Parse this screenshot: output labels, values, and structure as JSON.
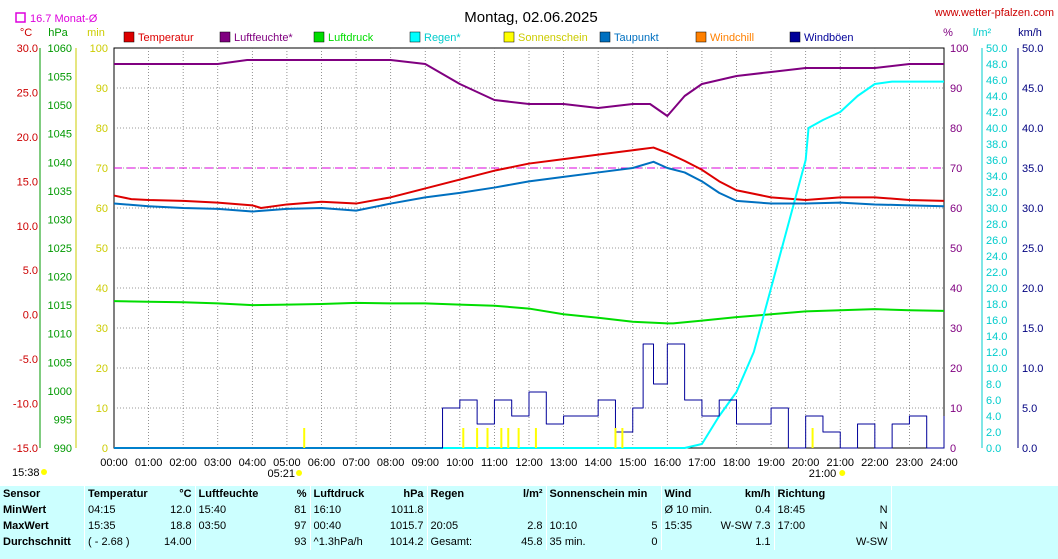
{
  "chart_data": {
    "type": "line",
    "title": "Montag, 02.06.2025",
    "source": "www.wetter-pfalzen.com",
    "monthly_avg_label": "16.7 Monat-Ø",
    "x_ticks": [
      "00:00",
      "01:00",
      "02:00",
      "03:00",
      "04:00",
      "05:00",
      "06:00",
      "07:00",
      "08:00",
      "09:00",
      "10:00",
      "11:00",
      "12:00",
      "13:00",
      "14:00",
      "15:00",
      "16:00",
      "17:00",
      "18:00",
      "19:00",
      "20:00",
      "21:00",
      "22:00",
      "23:00",
      "24:00"
    ],
    "axes": {
      "temp": {
        "unit": "°C",
        "ticks": [
          "30.0",
          "25.0",
          "20.0",
          "15.0",
          "10.0",
          "5.0",
          "0.0",
          "-5.0",
          "-10.0",
          "-15.0"
        ],
        "ylim": [
          -15,
          30
        ],
        "color": "#cc0000"
      },
      "pressure": {
        "unit": "hPa",
        "ticks": [
          "1060",
          "1055",
          "1050",
          "1045",
          "1040",
          "1035",
          "1030",
          "1025",
          "1020",
          "1015",
          "1010",
          "1005",
          "1000",
          "995",
          "990"
        ],
        "ylim": [
          990,
          1060
        ],
        "color": "#009900"
      },
      "sun_min": {
        "unit": "min",
        "ticks": [
          "100",
          "90",
          "80",
          "70",
          "60",
          "50",
          "40",
          "30",
          "20",
          "10",
          "0"
        ],
        "ylim": [
          0,
          100
        ],
        "color": "#cccc00"
      },
      "humidity": {
        "unit": "%",
        "ticks": [
          "100",
          "90",
          "80",
          "70",
          "60",
          "50",
          "40",
          "30",
          "20",
          "10",
          "0"
        ],
        "ylim": [
          0,
          100
        ],
        "color": "#800080"
      },
      "rain": {
        "unit": "l/m²",
        "ticks": [
          "50.0",
          "48.0",
          "46.0",
          "44.0",
          "42.0",
          "40.0",
          "38.0",
          "36.0",
          "34.0",
          "32.0",
          "30.0",
          "28.0",
          "26.0",
          "24.0",
          "22.0",
          "20.0",
          "18.0",
          "16.0",
          "14.0",
          "12.0",
          "10.0",
          "8.0",
          "6.0",
          "4.0",
          "2.0",
          "0.0"
        ],
        "ylim": [
          0,
          50
        ],
        "color": "#00cccc"
      },
      "wind": {
        "unit": "km/h",
        "ticks": [
          "50.0",
          "45.0",
          "40.0",
          "35.0",
          "30.0",
          "25.0",
          "20.0",
          "15.0",
          "10.0",
          "5.0",
          "0.0"
        ],
        "ylim": [
          0,
          50
        ],
        "color": "#000080"
      }
    },
    "legend": [
      {
        "name": "Temperatur",
        "color": "#dd0000"
      },
      {
        "name": "Luftfeuchte*",
        "color": "#800080"
      },
      {
        "name": "Luftdruck",
        "color": "#00dd00"
      },
      {
        "name": "Regen*",
        "color": "#00ffff"
      },
      {
        "name": "Sonnenschein",
        "color": "#ffff00"
      },
      {
        "name": "Taupunkt",
        "color": "#0070c0"
      },
      {
        "name": "Windchill",
        "color": "#ff8000"
      },
      {
        "name": "Windböen",
        "color": "#000099"
      }
    ],
    "reference_line": {
      "axis": "humidity",
      "value": 70,
      "color": "#dd00dd"
    },
    "series": [
      {
        "name": "Temperatur",
        "axis": "temp",
        "color": "#dd0000",
        "x": [
          0,
          0.5,
          1,
          2,
          3,
          4,
          4.25,
          5,
          6,
          7,
          8,
          9,
          10,
          11,
          12,
          13,
          14,
          15,
          15.6,
          16,
          16.5,
          17,
          17.5,
          18,
          19,
          20,
          21,
          22,
          23,
          24
        ],
        "y": [
          13.4,
          13.0,
          12.9,
          12.8,
          12.6,
          12.3,
          12.0,
          12.4,
          12.7,
          12.5,
          13.2,
          14.2,
          15.2,
          16.2,
          17.0,
          17.5,
          18.0,
          18.5,
          18.8,
          18.2,
          17.3,
          16.3,
          15.0,
          14.0,
          13.2,
          12.9,
          13.2,
          13.2,
          12.9,
          12.8
        ]
      },
      {
        "name": "Luftfeuchte*",
        "axis": "humidity",
        "color": "#800080",
        "x": [
          0,
          1,
          2,
          3,
          3.85,
          4,
          5,
          6,
          7,
          8,
          9,
          10,
          11,
          12,
          13,
          14,
          15,
          15.5,
          16,
          16.5,
          17,
          18,
          19,
          20,
          21,
          22,
          23,
          24
        ],
        "y": [
          96,
          96,
          96,
          96,
          97,
          97,
          97,
          97,
          97,
          97,
          96,
          91,
          87,
          86,
          86,
          85,
          86,
          86,
          83,
          88,
          91,
          93,
          94,
          95,
          95,
          95,
          96,
          96
        ]
      },
      {
        "name": "Luftdruck",
        "axis": "pressure",
        "color": "#00dd00",
        "x": [
          0,
          1,
          2,
          3,
          4,
          5,
          6,
          7,
          8,
          9,
          10,
          11,
          12,
          13,
          14,
          15,
          16,
          16.17,
          17,
          18,
          19,
          20,
          21,
          22,
          23,
          24
        ],
        "y": [
          1015.7,
          1015.6,
          1015.5,
          1015.3,
          1015.0,
          1015.1,
          1015.2,
          1015.4,
          1015.3,
          1015.3,
          1015.1,
          1014.9,
          1014.4,
          1013.4,
          1012.8,
          1012.1,
          1011.8,
          1011.8,
          1012.3,
          1012.9,
          1013.4,
          1013.9,
          1014.1,
          1014.3,
          1014.1,
          1014.0
        ]
      },
      {
        "name": "Regen*",
        "axis": "rain",
        "color": "#00ffff",
        "x": [
          0,
          16.5,
          17,
          17.5,
          18,
          18.5,
          19,
          19.5,
          20,
          20.083,
          20.5,
          21,
          21.5,
          22,
          22.5,
          23,
          24
        ],
        "y": [
          0,
          0,
          0.5,
          4,
          7,
          12,
          20,
          28,
          36,
          40,
          41,
          42,
          44,
          45.5,
          45.8,
          45.8,
          45.8
        ]
      },
      {
        "name": "Taupunkt",
        "axis": "temp",
        "color": "#0070c0",
        "x": [
          0,
          1,
          2,
          3,
          4,
          5,
          6,
          7,
          8,
          9,
          10,
          11,
          12,
          13,
          14,
          15,
          15.6,
          16,
          16.5,
          17,
          17.5,
          18,
          19,
          20,
          21,
          22,
          23,
          24
        ],
        "y": [
          12.5,
          12.2,
          12.0,
          11.9,
          11.6,
          11.9,
          12.0,
          11.7,
          12.5,
          13.2,
          13.7,
          14.3,
          15.0,
          15.5,
          16.0,
          16.5,
          17.2,
          16.5,
          16.0,
          15.0,
          13.7,
          12.8,
          12.5,
          12.5,
          12.6,
          12.4,
          12.3,
          12.2
        ]
      },
      {
        "name": "Windböen",
        "axis": "wind",
        "color": "#000099",
        "x": [
          0,
          9.3,
          9.5,
          10,
          10.5,
          11,
          11.5,
          12,
          12.5,
          13,
          13.5,
          14,
          14.5,
          15,
          15.3,
          15.6,
          16,
          16.5,
          17,
          17.5,
          18,
          18.5,
          19,
          19.5,
          20,
          20.5,
          21,
          21.5,
          22,
          22.5,
          23,
          23.5,
          24
        ],
        "y": [
          0,
          0,
          5,
          6,
          3,
          6,
          4,
          7,
          3,
          4,
          4,
          6,
          2,
          5,
          13,
          8,
          13,
          6,
          4,
          6,
          3,
          3,
          5,
          0,
          4,
          2,
          0,
          3,
          0,
          3,
          4,
          0,
          4
        ]
      }
    ],
    "sunshine_ticks_x": [
      5.5,
      10.1,
      10.5,
      10.8,
      11.2,
      11.4,
      11.7,
      12.2,
      14.5,
      14.7,
      20.2
    ],
    "sunrise": "05:21",
    "sunset": "21:00",
    "sun_duration": "15:38"
  },
  "summary": {
    "headers": [
      "Sensor",
      "Temperatur",
      "°C",
      "Luftfeuchte",
      "%",
      "Luftdruck",
      "hPa",
      "Regen",
      "l/m²",
      "Sonnenschein min",
      "Wind",
      "km/h",
      "Richtung"
    ],
    "rows": [
      {
        "label": "MinWert",
        "temp_time": "04:15",
        "temp": "12.0",
        "hum_time": "15:40",
        "hum": "81",
        "press_time": "16:10",
        "press": "1011.8",
        "rain_time": "",
        "rain": "",
        "sun_time": "",
        "sun": "",
        "wind_time": "Ø 10 min.",
        "wind": "0.4",
        "dir_time": "18:45",
        "dir": "N"
      },
      {
        "label": "MaxWert",
        "temp_time": "15:35",
        "temp": "18.8",
        "hum_time": "03:50",
        "hum": "97",
        "press_time": "00:40",
        "press": "1015.7",
        "rain_time": "20:05",
        "rain": "2.8",
        "sun_time": "10:10",
        "sun": "5",
        "wind_time": "15:35",
        "wind": "W-SW 7.3",
        "dir_time": "17:00",
        "dir": "N"
      },
      {
        "label": "Durchschnitt",
        "temp_time": "( - 2.68 )",
        "temp": "14.00",
        "hum_time": "",
        "hum": "93",
        "press_time": "^1.3hPa/h",
        "press": "1014.2",
        "rain_time": "Gesamt:",
        "rain": "45.8",
        "sun_time": "35 min.",
        "sun": "0",
        "wind_time": "",
        "wind": "1.1",
        "dir_time": "",
        "dir": "W-SW"
      }
    ]
  }
}
